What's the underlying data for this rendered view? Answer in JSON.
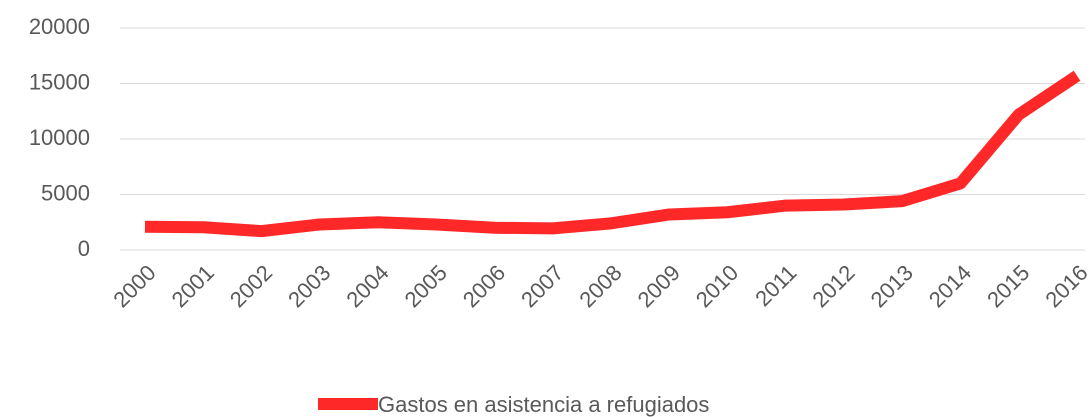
{
  "chart_data": {
    "type": "line",
    "categories": [
      "2000",
      "2001",
      "2002",
      "2003",
      "2004",
      "2005",
      "2006",
      "2007",
      "2008",
      "2009",
      "2010",
      "2011",
      "2012",
      "2013",
      "2014",
      "2015",
      "2016"
    ],
    "series": [
      {
        "name": "Gastos en asistencia a refugiados",
        "color": "#ff2828",
        "values": [
          2100,
          2050,
          1700,
          2300,
          2500,
          2300,
          2000,
          1950,
          2400,
          3200,
          3400,
          4000,
          4100,
          4400,
          6000,
          12200,
          15700
        ]
      }
    ],
    "ylim": [
      0,
      20000
    ],
    "yticks": [
      0,
      5000,
      10000,
      15000,
      20000
    ],
    "grid": true,
    "legend": "bottom"
  }
}
